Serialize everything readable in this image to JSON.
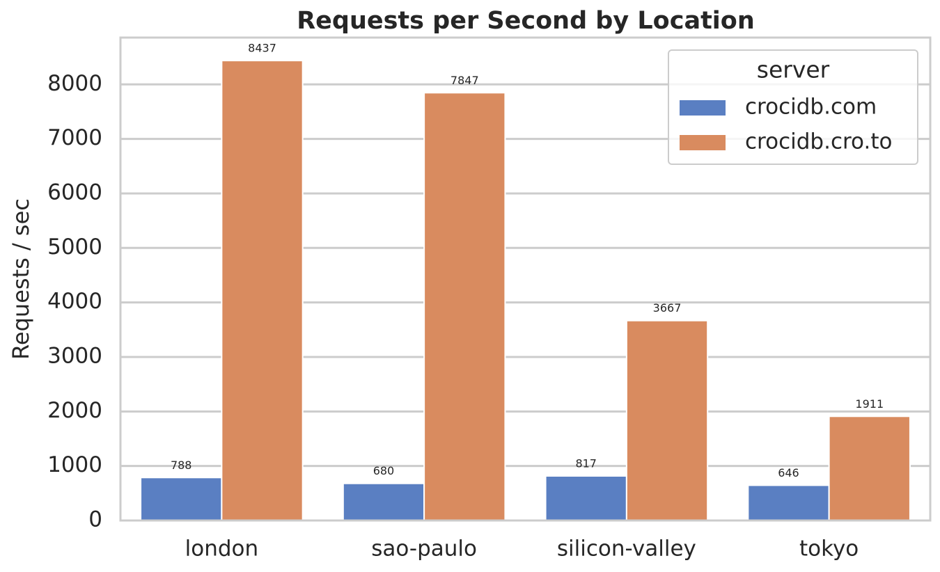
{
  "chart_data": {
    "type": "bar",
    "title": "Requests per Second by Location",
    "y_label": "Requests / sec",
    "categories": [
      "london",
      "sao-paulo",
      "silicon-valley",
      "tokyo"
    ],
    "series": [
      {
        "name": "crocidb.com",
        "color": "#5a7fc2",
        "values": [
          788,
          680,
          817,
          646
        ]
      },
      {
        "name": "crocidb.cro.to",
        "color": "#d98b5f",
        "values": [
          8437,
          7847,
          3667,
          1911
        ]
      }
    ],
    "legend_title": "server",
    "legend": "upper right",
    "ylim": [
      0,
      8859
    ],
    "yticks": [
      0,
      1000,
      2000,
      3000,
      4000,
      5000,
      6000,
      7000,
      8000
    ],
    "grid": true
  }
}
